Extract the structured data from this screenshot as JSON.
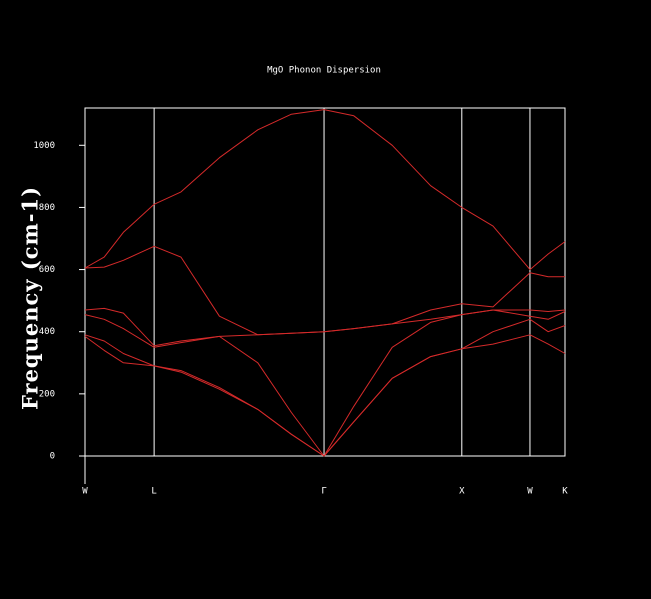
{
  "chart_data": {
    "type": "line",
    "title": "MgO Phonon Dispersion",
    "ylabel": "Frequency (cm-1)",
    "x": [
      0,
      0.04,
      0.08,
      0.144,
      0.2,
      0.28,
      0.36,
      0.43,
      0.498,
      0.56,
      0.64,
      0.72,
      0.785,
      0.85,
      0.927,
      0.965,
      1
    ],
    "xlim": [
      0,
      1
    ],
    "xticks": [
      {
        "value": 0,
        "label": "W"
      },
      {
        "value": 0.144,
        "label": "L"
      },
      {
        "value": 0.498,
        "label": "Γ"
      },
      {
        "value": 0.785,
        "label": "X"
      },
      {
        "value": 0.927,
        "label": "W"
      },
      {
        "value": 1,
        "label": "K"
      }
    ],
    "ylim": [
      0,
      1120
    ],
    "yticks": [
      0,
      200,
      400,
      600,
      800,
      1000
    ],
    "grid": true,
    "series": [
      {
        "color": "#d42a2a",
        "values": [
          605,
          640,
          720,
          810,
          850,
          960,
          1050,
          1100,
          1115,
          1095,
          1000,
          870,
          800,
          740,
          600,
          650,
          690
        ]
      },
      {
        "color": "#d42a2a",
        "values": [
          605,
          608,
          630,
          675,
          640,
          450,
          390,
          395,
          400,
          410,
          425,
          470,
          490,
          480,
          590,
          577,
          577
        ]
      },
      {
        "color": "#d42a2a",
        "values": [
          470,
          475,
          460,
          355,
          370,
          385,
          390,
          395,
          400,
          410,
          425,
          440,
          455,
          470,
          470,
          465,
          470
        ]
      },
      {
        "color": "#d42a2a",
        "values": [
          455,
          440,
          410,
          350,
          365,
          385,
          300,
          140,
          0,
          160,
          350,
          430,
          455,
          470,
          450,
          440,
          465
        ]
      },
      {
        "color": "#d42a2a",
        "values": [
          390,
          370,
          330,
          290,
          275,
          220,
          150,
          70,
          0,
          110,
          250,
          320,
          345,
          400,
          440,
          400,
          420
        ]
      },
      {
        "color": "#d42a2a",
        "values": [
          385,
          340,
          300,
          290,
          270,
          215,
          150,
          70,
          0,
          110,
          250,
          320,
          345,
          360,
          390,
          360,
          330
        ]
      }
    ]
  }
}
